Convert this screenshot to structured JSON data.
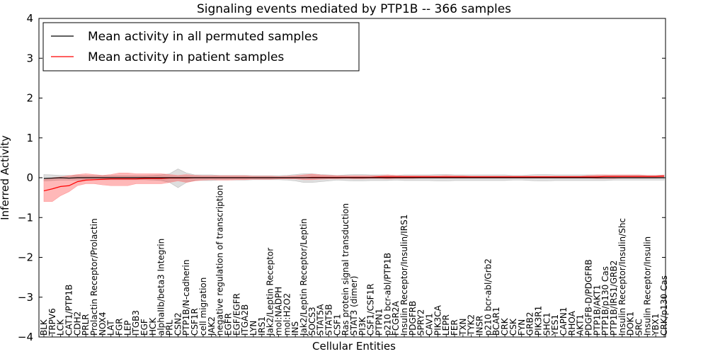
{
  "chart_data": {
    "type": "line",
    "title": "Signaling events mediated by PTP1B -- 366 samples",
    "xlabel": "Cellular Entities",
    "ylabel": "Inferred Activity",
    "ylim": [
      -4,
      4
    ],
    "yticks": [
      4,
      3,
      2,
      1,
      0,
      -1,
      -2,
      -3,
      -4
    ],
    "ytick_labels": [
      "4",
      "3",
      "2",
      "1",
      "0",
      "−1",
      "−2",
      "−3",
      "−4"
    ],
    "legend": {
      "location": "top-left",
      "entries": [
        {
          "label": "Mean activity in all permuted samples",
          "color": "#000000"
        },
        {
          "label": "Mean activity in patient samples",
          "color": "#ff0000"
        }
      ]
    },
    "categories": [
      "BLK",
      "TRPV6",
      "LCK",
      "CAT1/PTP1B",
      "CDH2",
      "PRLR",
      "Prolactin Receptor/Prolactin",
      "NOX4",
      "LAT",
      "FGR",
      "LEP",
      "ITGB3",
      "EGF",
      "HCK",
      "alphaIIb/beta3 Integrin",
      "PRL",
      "CSN2",
      "PTP1B/N-cadherin",
      "CSF1R",
      "cell migration",
      "JAK2",
      "negative regulation of transcription",
      "EGFR",
      "EGF/EGFR",
      "ITGA2B",
      "LYN",
      "IRS1",
      "Jak2/Leptin Receptor",
      "mol:NADPH",
      "mol:H2O2",
      "INS",
      "Jak2/Leptin Receptor/Leptin",
      "SOCS3",
      "STAT5A",
      "STAT5B",
      "CSF1",
      "Ras protein signal transduction",
      "STAT3 (dimer)",
      "PI3K",
      "CSF1/CSF1R",
      "PTPN1",
      "p210 bcr-abl/PTP1B",
      "FCGR2A",
      "Insulin Receptor/Insulin/IRS1",
      "PDGFRB",
      "SPRY2",
      "CAV1",
      "PIK3CA",
      "LEPR",
      "FER",
      "TXN",
      "TYK2",
      "INSR",
      "p210 bcr-abl/Grb2",
      "BCAR1",
      "CRK",
      "CSK",
      "FYN",
      "GRB2",
      "PIK3R1",
      "SHC1",
      "YES1",
      "CAPN1",
      "RHOA",
      "AKT1",
      "PDGFB-D/PDGFRB",
      "PTP1B/AKT1",
      "PTP1B/p130 Cas",
      "PTP1B/IRS1/GRB2",
      "Insulin Receptor/Insulin/Shc",
      "DOK1",
      "SRC",
      "Insulin Receptor/Insulin",
      "YBX1",
      "CRK/p130 Cas"
    ],
    "series": [
      {
        "name": "Mean activity in all permuted samples",
        "color": "#000000",
        "values": [
          -0.02,
          -0.01,
          0,
          -0.01,
          0,
          0,
          0,
          0,
          0,
          0,
          0,
          0,
          0,
          0,
          0,
          0,
          0,
          0,
          0,
          0,
          0,
          0,
          0,
          0,
          0,
          0,
          0,
          0,
          0,
          0,
          0,
          0,
          0,
          0,
          0,
          0,
          0,
          0,
          0,
          0,
          0,
          0,
          0,
          0,
          0,
          0,
          0,
          0,
          0,
          0,
          0,
          0,
          0,
          0,
          0,
          0,
          0,
          0,
          0,
          0,
          0,
          0,
          0,
          0,
          0,
          0,
          0,
          0,
          0,
          0,
          0,
          0,
          0,
          0,
          0
        ],
        "band_lower": [
          -0.08,
          -0.07,
          -0.06,
          -0.06,
          -0.06,
          -0.05,
          -0.05,
          -0.05,
          -0.05,
          -0.05,
          -0.05,
          -0.05,
          -0.05,
          -0.06,
          -0.07,
          -0.12,
          -0.25,
          -0.12,
          -0.07,
          -0.07,
          -0.07,
          -0.06,
          -0.06,
          -0.06,
          -0.06,
          -0.05,
          -0.05,
          -0.05,
          -0.05,
          -0.06,
          -0.08,
          -0.12,
          -0.12,
          -0.1,
          -0.08,
          -0.06,
          -0.07,
          -0.08,
          -0.08,
          -0.07,
          -0.07,
          -0.07,
          -0.06,
          -0.07,
          -0.07,
          -0.07,
          -0.07,
          -0.08,
          -0.08,
          -0.07,
          -0.07,
          -0.07,
          -0.07,
          -0.07,
          -0.07,
          -0.07,
          -0.06,
          -0.06,
          -0.07,
          -0.08,
          -0.08,
          -0.07,
          -0.07,
          -0.07,
          -0.07,
          -0.07,
          -0.07,
          -0.07,
          -0.06,
          -0.06,
          -0.06,
          -0.06,
          -0.06,
          -0.06,
          -0.06
        ],
        "band_upper": [
          0.08,
          0.07,
          0.06,
          0.06,
          0.06,
          0.05,
          0.05,
          0.05,
          0.05,
          0.05,
          0.05,
          0.05,
          0.05,
          0.06,
          0.07,
          0.1,
          0.22,
          0.12,
          0.07,
          0.07,
          0.07,
          0.06,
          0.06,
          0.06,
          0.06,
          0.05,
          0.05,
          0.05,
          0.05,
          0.06,
          0.08,
          0.1,
          0.1,
          0.08,
          0.07,
          0.06,
          0.07,
          0.08,
          0.08,
          0.07,
          0.07,
          0.07,
          0.06,
          0.07,
          0.07,
          0.07,
          0.07,
          0.08,
          0.08,
          0.07,
          0.07,
          0.07,
          0.07,
          0.07,
          0.07,
          0.07,
          0.06,
          0.06,
          0.07,
          0.08,
          0.08,
          0.07,
          0.07,
          0.07,
          0.07,
          0.07,
          0.07,
          0.07,
          0.06,
          0.06,
          0.06,
          0.06,
          0.06,
          0.06,
          0.06
        ]
      },
      {
        "name": "Mean activity in patient samples",
        "color": "#ff0000",
        "values": [
          -0.33,
          -0.28,
          -0.22,
          -0.2,
          -0.1,
          -0.06,
          -0.05,
          -0.04,
          -0.03,
          -0.03,
          -0.03,
          -0.03,
          -0.02,
          -0.02,
          -0.02,
          -0.01,
          -0.01,
          -0.01,
          0,
          0,
          0,
          0,
          0,
          0,
          0,
          0,
          0,
          0,
          0,
          0,
          0,
          0,
          0.01,
          0.01,
          0.01,
          0.01,
          0.01,
          0.01,
          0.01,
          0.01,
          0.02,
          0.02,
          0.02,
          0.02,
          0.02,
          0.02,
          0.02,
          0.02,
          0.02,
          0.02,
          0.02,
          0.02,
          0.02,
          0.02,
          0.02,
          0.02,
          0.02,
          0.02,
          0.02,
          0.02,
          0.02,
          0.02,
          0.02,
          0.02,
          0.02,
          0.02,
          0.02,
          0.03,
          0.03,
          0.03,
          0.03,
          0.03,
          0.03,
          0.03,
          0.04
        ],
        "band_lower": [
          -0.6,
          -0.6,
          -0.45,
          -0.35,
          -0.2,
          -0.15,
          -0.15,
          -0.18,
          -0.2,
          -0.2,
          -0.2,
          -0.15,
          -0.15,
          -0.15,
          -0.15,
          -0.12,
          -0.08,
          -0.12,
          -0.08,
          -0.06,
          -0.05,
          -0.06,
          -0.06,
          -0.05,
          -0.05,
          -0.04,
          -0.04,
          -0.04,
          -0.03,
          -0.03,
          -0.03,
          -0.05,
          -0.05,
          -0.04,
          -0.03,
          -0.03,
          -0.02,
          -0.03,
          -0.03,
          -0.02,
          -0.02,
          -0.03,
          -0.02,
          -0.02,
          -0.02,
          -0.01,
          -0.01,
          -0.01,
          -0.01,
          -0.01,
          -0.01,
          -0.01,
          -0.01,
          -0.01,
          -0.01,
          -0.01,
          -0.01,
          -0.01,
          -0.01,
          -0.01,
          -0.01,
          -0.01,
          -0.01,
          -0.01,
          -0.01,
          -0.01,
          -0.02,
          -0.02,
          -0.02,
          -0.01,
          -0.01,
          -0.01,
          -0.01,
          -0.01,
          0
        ],
        "band_upper": [
          -0.05,
          0,
          0.02,
          0.05,
          0.08,
          0.1,
          0.08,
          0.06,
          0.08,
          0.12,
          0.12,
          0.1,
          0.1,
          0.1,
          0.1,
          0.08,
          0.06,
          0.08,
          0.06,
          0.05,
          0.05,
          0.05,
          0.05,
          0.05,
          0.05,
          0.04,
          0.04,
          0.04,
          0.03,
          0.04,
          0.05,
          0.07,
          0.09,
          0.07,
          0.06,
          0.05,
          0.05,
          0.05,
          0.05,
          0.05,
          0.05,
          0.07,
          0.06,
          0.05,
          0.05,
          0.05,
          0.05,
          0.05,
          0.06,
          0.05,
          0.05,
          0.04,
          0.04,
          0.04,
          0.04,
          0.04,
          0.04,
          0.04,
          0.04,
          0.04,
          0.04,
          0.04,
          0.04,
          0.04,
          0.04,
          0.06,
          0.07,
          0.07,
          0.07,
          0.07,
          0.07,
          0.07,
          0.06,
          0.06,
          0.07
        ]
      }
    ]
  }
}
